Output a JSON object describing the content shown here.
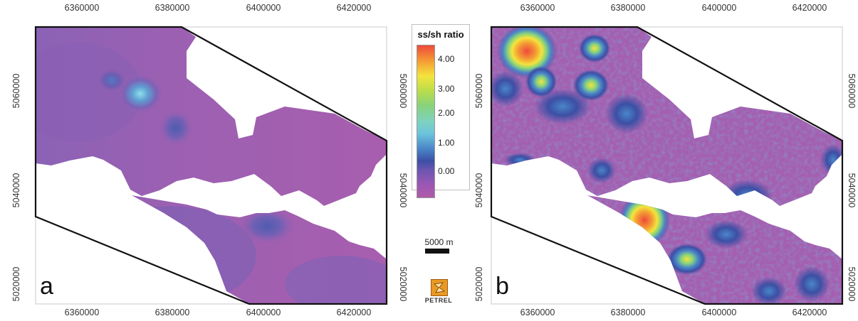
{
  "axes": {
    "x_ticks": [
      "6360000",
      "6380000",
      "6400000",
      "6420000"
    ],
    "y_ticks": [
      "5060000",
      "5040000",
      "5020000"
    ]
  },
  "panels": [
    {
      "letter": "a",
      "description_shown": "interpolated ss/sh ratio map"
    },
    {
      "letter": "b",
      "description_shown": "stochastic ss/sh ratio map"
    }
  ],
  "legend": {
    "title": "ss/sh ratio",
    "labels": [
      "4.00",
      "3.00",
      "2.00",
      "1.00",
      "0.00"
    ],
    "colors": [
      "#ee4a3c",
      "#f4e43c",
      "#86d27e",
      "#6cc4dc",
      "#3c4fa4",
      "#b05aa8"
    ]
  },
  "scalebar": {
    "label": "5000 m"
  },
  "logo": {
    "text": "PETREL",
    "icon": "petrel-logo-icon"
  },
  "colors": {
    "base": "#a55fb0",
    "boundary": "#111111"
  }
}
